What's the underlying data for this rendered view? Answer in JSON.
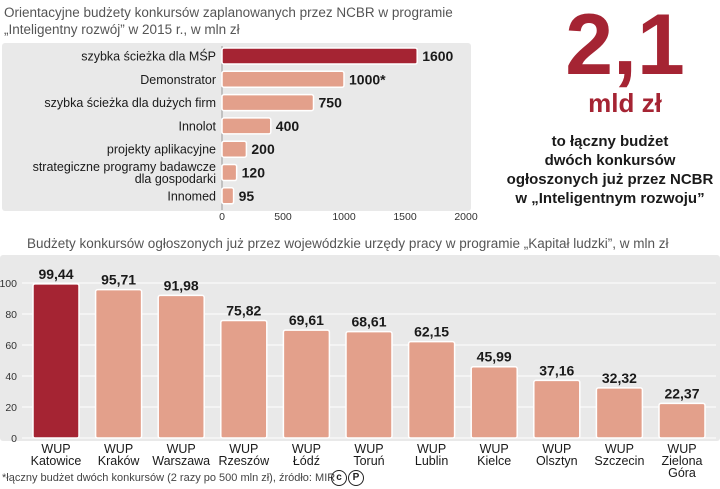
{
  "chart1": {
    "title": "Orientacyjne budżety konkursów zaplanowanych przez NCBR w programie\n„Inteligentny rozwój” w 2015 r., w mln zł"
  },
  "highlight": {
    "big_number": "2,1",
    "unit": "mld zł",
    "caption": "to łączny budżet\ndwóch konkursów\nogłoszonych już przez NCBR\nw „Inteligentnym rozwoju”"
  },
  "chart2": {
    "title": "Budżety konkursów ogłoszonych już przez wojewódzkie urzędy pracy w programie „Kapitał ludzki”, w mln zł"
  },
  "footnote": "*łączny budżet dwóch konkursów (2 razy po 500 mln zł), źródło: MIR",
  "copyright_glyphs": [
    "c",
    "P"
  ],
  "chart_data": [
    {
      "type": "bar",
      "orientation": "horizontal",
      "categories": [
        "szybka ścieżka dla MŚP",
        "Demonstrator",
        "szybka ścieżka dla dużych firm",
        "Innolot",
        "projekty aplikacyjne",
        "strategiczne programy badawcze\ndla gospodarki",
        "Innomed"
      ],
      "values": [
        1600,
        1000,
        750,
        400,
        200,
        120,
        95
      ],
      "value_labels": [
        "1600",
        "1000*",
        "750",
        "400",
        "200",
        "120",
        "95"
      ],
      "xticks": [
        "0",
        "500",
        "1000",
        "1500",
        "2000"
      ],
      "xlim": [
        0,
        2000
      ],
      "highlight_index": 0,
      "colors": {
        "bar": "#e3a08b",
        "highlight": "#a52433",
        "outline": "#ffffff"
      }
    },
    {
      "type": "bar",
      "orientation": "vertical",
      "categories": [
        "WUP\nKatowice",
        "WUP\nKraków",
        "WUP\nWarszawa",
        "WUP\nRzeszów",
        "WUP\nŁódź",
        "WUP\nToruń",
        "WUP\nLublin",
        "WUP\nKielce",
        "WUP\nOlsztyn",
        "WUP\nSzczecin",
        "WUP\nZielona\nGóra"
      ],
      "values": [
        99.44,
        95.71,
        91.98,
        75.82,
        69.61,
        68.61,
        62.15,
        45.99,
        37.16,
        32.32,
        22.37
      ],
      "value_labels": [
        "99,44",
        "95,71",
        "91,98",
        "75,82",
        "69,61",
        "68,61",
        "62,15",
        "45,99",
        "37,16",
        "32,32",
        "22,37"
      ],
      "yticks": [
        "0",
        "20",
        "40",
        "60",
        "80",
        "100"
      ],
      "ylim": [
        0,
        100
      ],
      "highlight_index": 0,
      "colors": {
        "bar": "#e3a08b",
        "highlight": "#a52433",
        "outline": "#ffffff"
      }
    }
  ]
}
